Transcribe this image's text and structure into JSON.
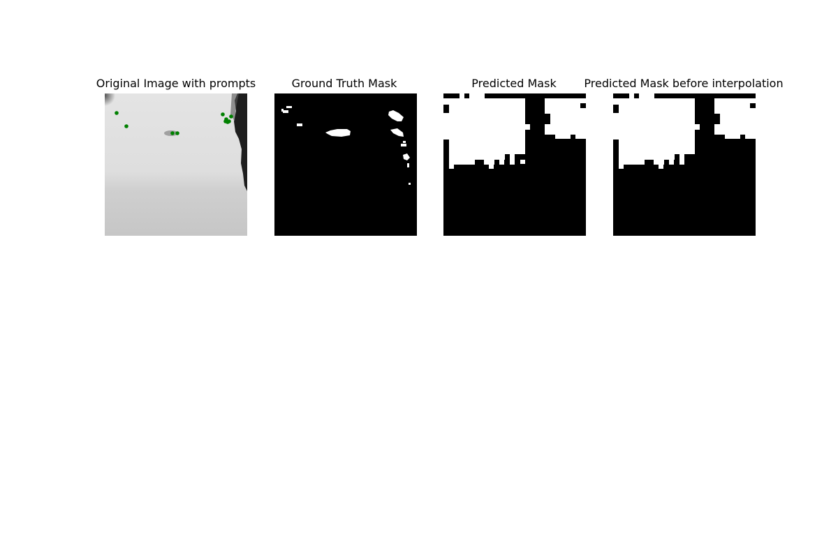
{
  "figure": {
    "panels": [
      {
        "id": "original",
        "title": "Original Image with prompts",
        "kind": "image-with-prompts",
        "prompt_color": "#008000"
      },
      {
        "id": "ground-truth",
        "title": "Ground Truth Mask",
        "kind": "mask"
      },
      {
        "id": "predicted",
        "title": "Predicted Mask",
        "kind": "mask"
      },
      {
        "id": "predicted-raw",
        "title": "Predicted Mask before interpolation",
        "kind": "mask"
      }
    ],
    "colors": {
      "mask_foreground": "#ffffff",
      "mask_background": "#000000",
      "prompt": "#008000"
    }
  }
}
